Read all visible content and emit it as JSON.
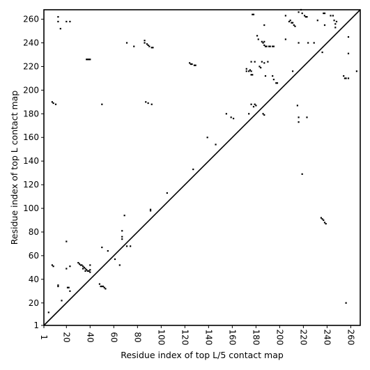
{
  "chart_data": {
    "type": "scatter",
    "title": "",
    "xlabel": "Residue index of top L/5 contact map",
    "ylabel": "Residue index of top L contact map",
    "xlim": [
      1,
      268
    ],
    "ylim": [
      1,
      268
    ],
    "xticks": [
      1,
      20,
      40,
      60,
      80,
      100,
      120,
      140,
      160,
      180,
      200,
      220,
      240,
      260
    ],
    "yticks": [
      1,
      20,
      40,
      60,
      80,
      100,
      120,
      140,
      160,
      180,
      200,
      220,
      240,
      260
    ],
    "grid": false,
    "diagonal": true,
    "color": "#000000",
    "upper_points": [
      [
        13,
        262
      ],
      [
        13,
        258
      ],
      [
        15,
        252
      ],
      [
        20,
        258
      ],
      [
        23,
        258
      ],
      [
        8,
        190
      ],
      [
        9,
        189
      ],
      [
        11,
        188
      ],
      [
        50,
        188
      ],
      [
        37,
        226
      ],
      [
        38,
        226
      ],
      [
        39,
        226
      ],
      [
        40,
        226
      ],
      [
        71,
        240
      ],
      [
        77,
        237
      ],
      [
        86,
        242
      ],
      [
        86,
        240
      ],
      [
        88,
        239
      ],
      [
        89,
        238
      ],
      [
        90,
        237
      ],
      [
        92,
        236
      ],
      [
        93,
        236
      ],
      [
        87,
        190
      ],
      [
        89,
        189
      ],
      [
        92,
        188
      ],
      [
        105,
        113
      ],
      [
        127,
        133
      ],
      [
        124,
        223
      ],
      [
        125,
        222
      ],
      [
        126,
        222
      ],
      [
        128,
        221
      ],
      [
        129,
        221
      ],
      [
        139,
        160
      ],
      [
        146,
        154
      ],
      [
        155,
        180
      ],
      [
        159,
        177
      ],
      [
        161,
        176
      ],
      [
        172,
        218
      ],
      [
        172,
        216
      ],
      [
        174,
        216
      ],
      [
        175,
        217
      ],
      [
        176,
        216
      ],
      [
        176,
        213
      ],
      [
        177,
        213
      ],
      [
        176,
        224
      ],
      [
        179,
        224
      ],
      [
        177,
        264
      ],
      [
        178,
        264
      ],
      [
        181,
        246
      ],
      [
        182,
        243
      ],
      [
        183,
        220
      ],
      [
        184,
        219
      ],
      [
        185,
        241
      ],
      [
        186,
        240
      ],
      [
        187,
        241
      ],
      [
        187,
        238
      ],
      [
        188,
        237
      ],
      [
        189,
        237
      ],
      [
        191,
        237
      ],
      [
        192,
        237
      ],
      [
        194,
        237
      ],
      [
        195,
        237
      ],
      [
        187,
        255
      ],
      [
        185,
        224
      ],
      [
        187,
        223
      ],
      [
        190,
        224
      ],
      [
        188,
        212
      ],
      [
        194,
        212
      ],
      [
        195,
        209
      ],
      [
        197,
        206
      ],
      [
        198,
        206
      ],
      [
        174,
        180
      ],
      [
        176,
        188
      ],
      [
        178,
        186
      ],
      [
        179,
        188
      ],
      [
        180,
        187
      ],
      [
        186,
        180
      ],
      [
        187,
        179
      ],
      [
        205,
        243
      ],
      [
        205,
        263
      ],
      [
        208,
        258
      ],
      [
        209,
        259
      ],
      [
        210,
        257
      ],
      [
        211,
        257
      ],
      [
        212,
        255
      ],
      [
        213,
        254
      ],
      [
        211,
        216
      ],
      [
        216,
        240
      ],
      [
        216,
        266
      ],
      [
        218,
        268
      ],
      [
        219,
        265
      ],
      [
        221,
        263
      ],
      [
        222,
        262
      ],
      [
        223,
        262
      ],
      [
        215,
        187
      ],
      [
        216,
        177
      ],
      [
        216,
        173
      ],
      [
        219,
        129
      ],
      [
        223,
        177
      ],
      [
        224,
        240
      ],
      [
        229,
        240
      ],
      [
        232,
        259
      ],
      [
        237,
        265
      ],
      [
        238,
        265
      ],
      [
        238,
        255
      ],
      [
        236,
        232
      ],
      [
        243,
        263
      ],
      [
        245,
        263
      ],
      [
        246,
        259
      ],
      [
        248,
        258
      ],
      [
        247,
        256
      ],
      [
        247,
        253
      ],
      [
        254,
        212
      ],
      [
        255,
        210
      ],
      [
        256,
        210
      ],
      [
        258,
        210
      ],
      [
        258,
        245
      ],
      [
        258,
        231
      ],
      [
        265,
        216
      ]
    ],
    "lower_points": [
      [
        5,
        12
      ],
      [
        13,
        34
      ],
      [
        13,
        35
      ],
      [
        9,
        51
      ],
      [
        8,
        52
      ],
      [
        16,
        22
      ],
      [
        20,
        72
      ],
      [
        20,
        49
      ],
      [
        21,
        33
      ],
      [
        22,
        33
      ],
      [
        23,
        51
      ],
      [
        23,
        30
      ],
      [
        30,
        54
      ],
      [
        31,
        53
      ],
      [
        32,
        52
      ],
      [
        33,
        52
      ],
      [
        34,
        51
      ],
      [
        34,
        49
      ],
      [
        35,
        50
      ],
      [
        36,
        49
      ],
      [
        36,
        47
      ],
      [
        37,
        48
      ],
      [
        38,
        47
      ],
      [
        39,
        47
      ],
      [
        40,
        46
      ],
      [
        40,
        48
      ],
      [
        40,
        52
      ],
      [
        48,
        36
      ],
      [
        49,
        34
      ],
      [
        50,
        34
      ],
      [
        51,
        34
      ],
      [
        52,
        33
      ],
      [
        53,
        32
      ],
      [
        50,
        67
      ],
      [
        55,
        64
      ],
      [
        61,
        57
      ],
      [
        65,
        52
      ],
      [
        67,
        81
      ],
      [
        67,
        76
      ],
      [
        67,
        74
      ],
      [
        69,
        94
      ],
      [
        71,
        68
      ],
      [
        74,
        68
      ],
      [
        91,
        99
      ],
      [
        91,
        98
      ],
      [
        235,
        92
      ],
      [
        236,
        91
      ],
      [
        237,
        90
      ],
      [
        238,
        88
      ],
      [
        239,
        87
      ],
      [
        256,
        20
      ]
    ]
  }
}
